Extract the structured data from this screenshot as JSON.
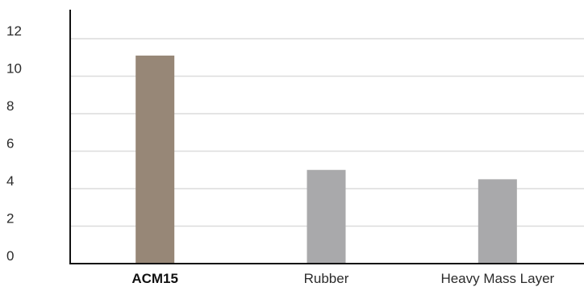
{
  "chart_data": {
    "type": "bar",
    "title": "",
    "xlabel": "",
    "ylabel": "",
    "categories": [
      "ACM15",
      "Rubber",
      "Heavy Mass Layer"
    ],
    "values": [
      11.1,
      5.0,
      4.5
    ],
    "highlight_category": "ACM15",
    "bar_colors": [
      "#978777",
      "#a9a9ab",
      "#a9a9ab"
    ],
    "ylim": [
      0,
      12
    ],
    "yticks": [
      0,
      2,
      4,
      6,
      8,
      10,
      12
    ],
    "grid": true,
    "legend": "none"
  }
}
